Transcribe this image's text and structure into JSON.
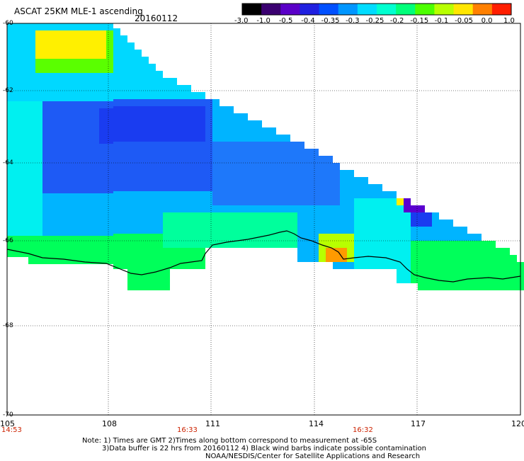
{
  "header": {
    "title": "ASCAT 25KM MLE-1 ascending",
    "date": "20160112"
  },
  "colorbar": {
    "labels": [
      "-3.0",
      "-1.0",
      "-0.5",
      "-0.4",
      "-0.35",
      "-0.3",
      "-0.25",
      "-0.2",
      "-0.15",
      "-0.1",
      "-0.05",
      "0.0",
      "1.0"
    ],
    "colors": [
      "#000000",
      "#3a0070",
      "#5a00c8",
      "#2020e0",
      "#0050ff",
      "#0096ff",
      "#00dcff",
      "#00ffd0",
      "#00ff7a",
      "#4cff00",
      "#b8ff00",
      "#ffe600",
      "#ff8000",
      "#ff1e00"
    ]
  },
  "map": {
    "lat_labels": [
      "-60",
      "-62",
      "-64",
      "-66",
      "-68",
      "-70"
    ],
    "lon_labels": [
      "105",
      "108",
      "111",
      "114",
      "117",
      "120"
    ],
    "time_labels": [
      "14:53",
      "16:33",
      "16:32"
    ]
  },
  "footer": {
    "line1": "Note: 1) Times are GMT 2)Times along bottom correspond to measurement at -65S",
    "line2": "3)Data buffer is 22 hrs from 20160112 4) Black wind barbs indicate possible contamination",
    "line3": "NOAA/NESDIS/Center for Satellite Applications and Research"
  }
}
